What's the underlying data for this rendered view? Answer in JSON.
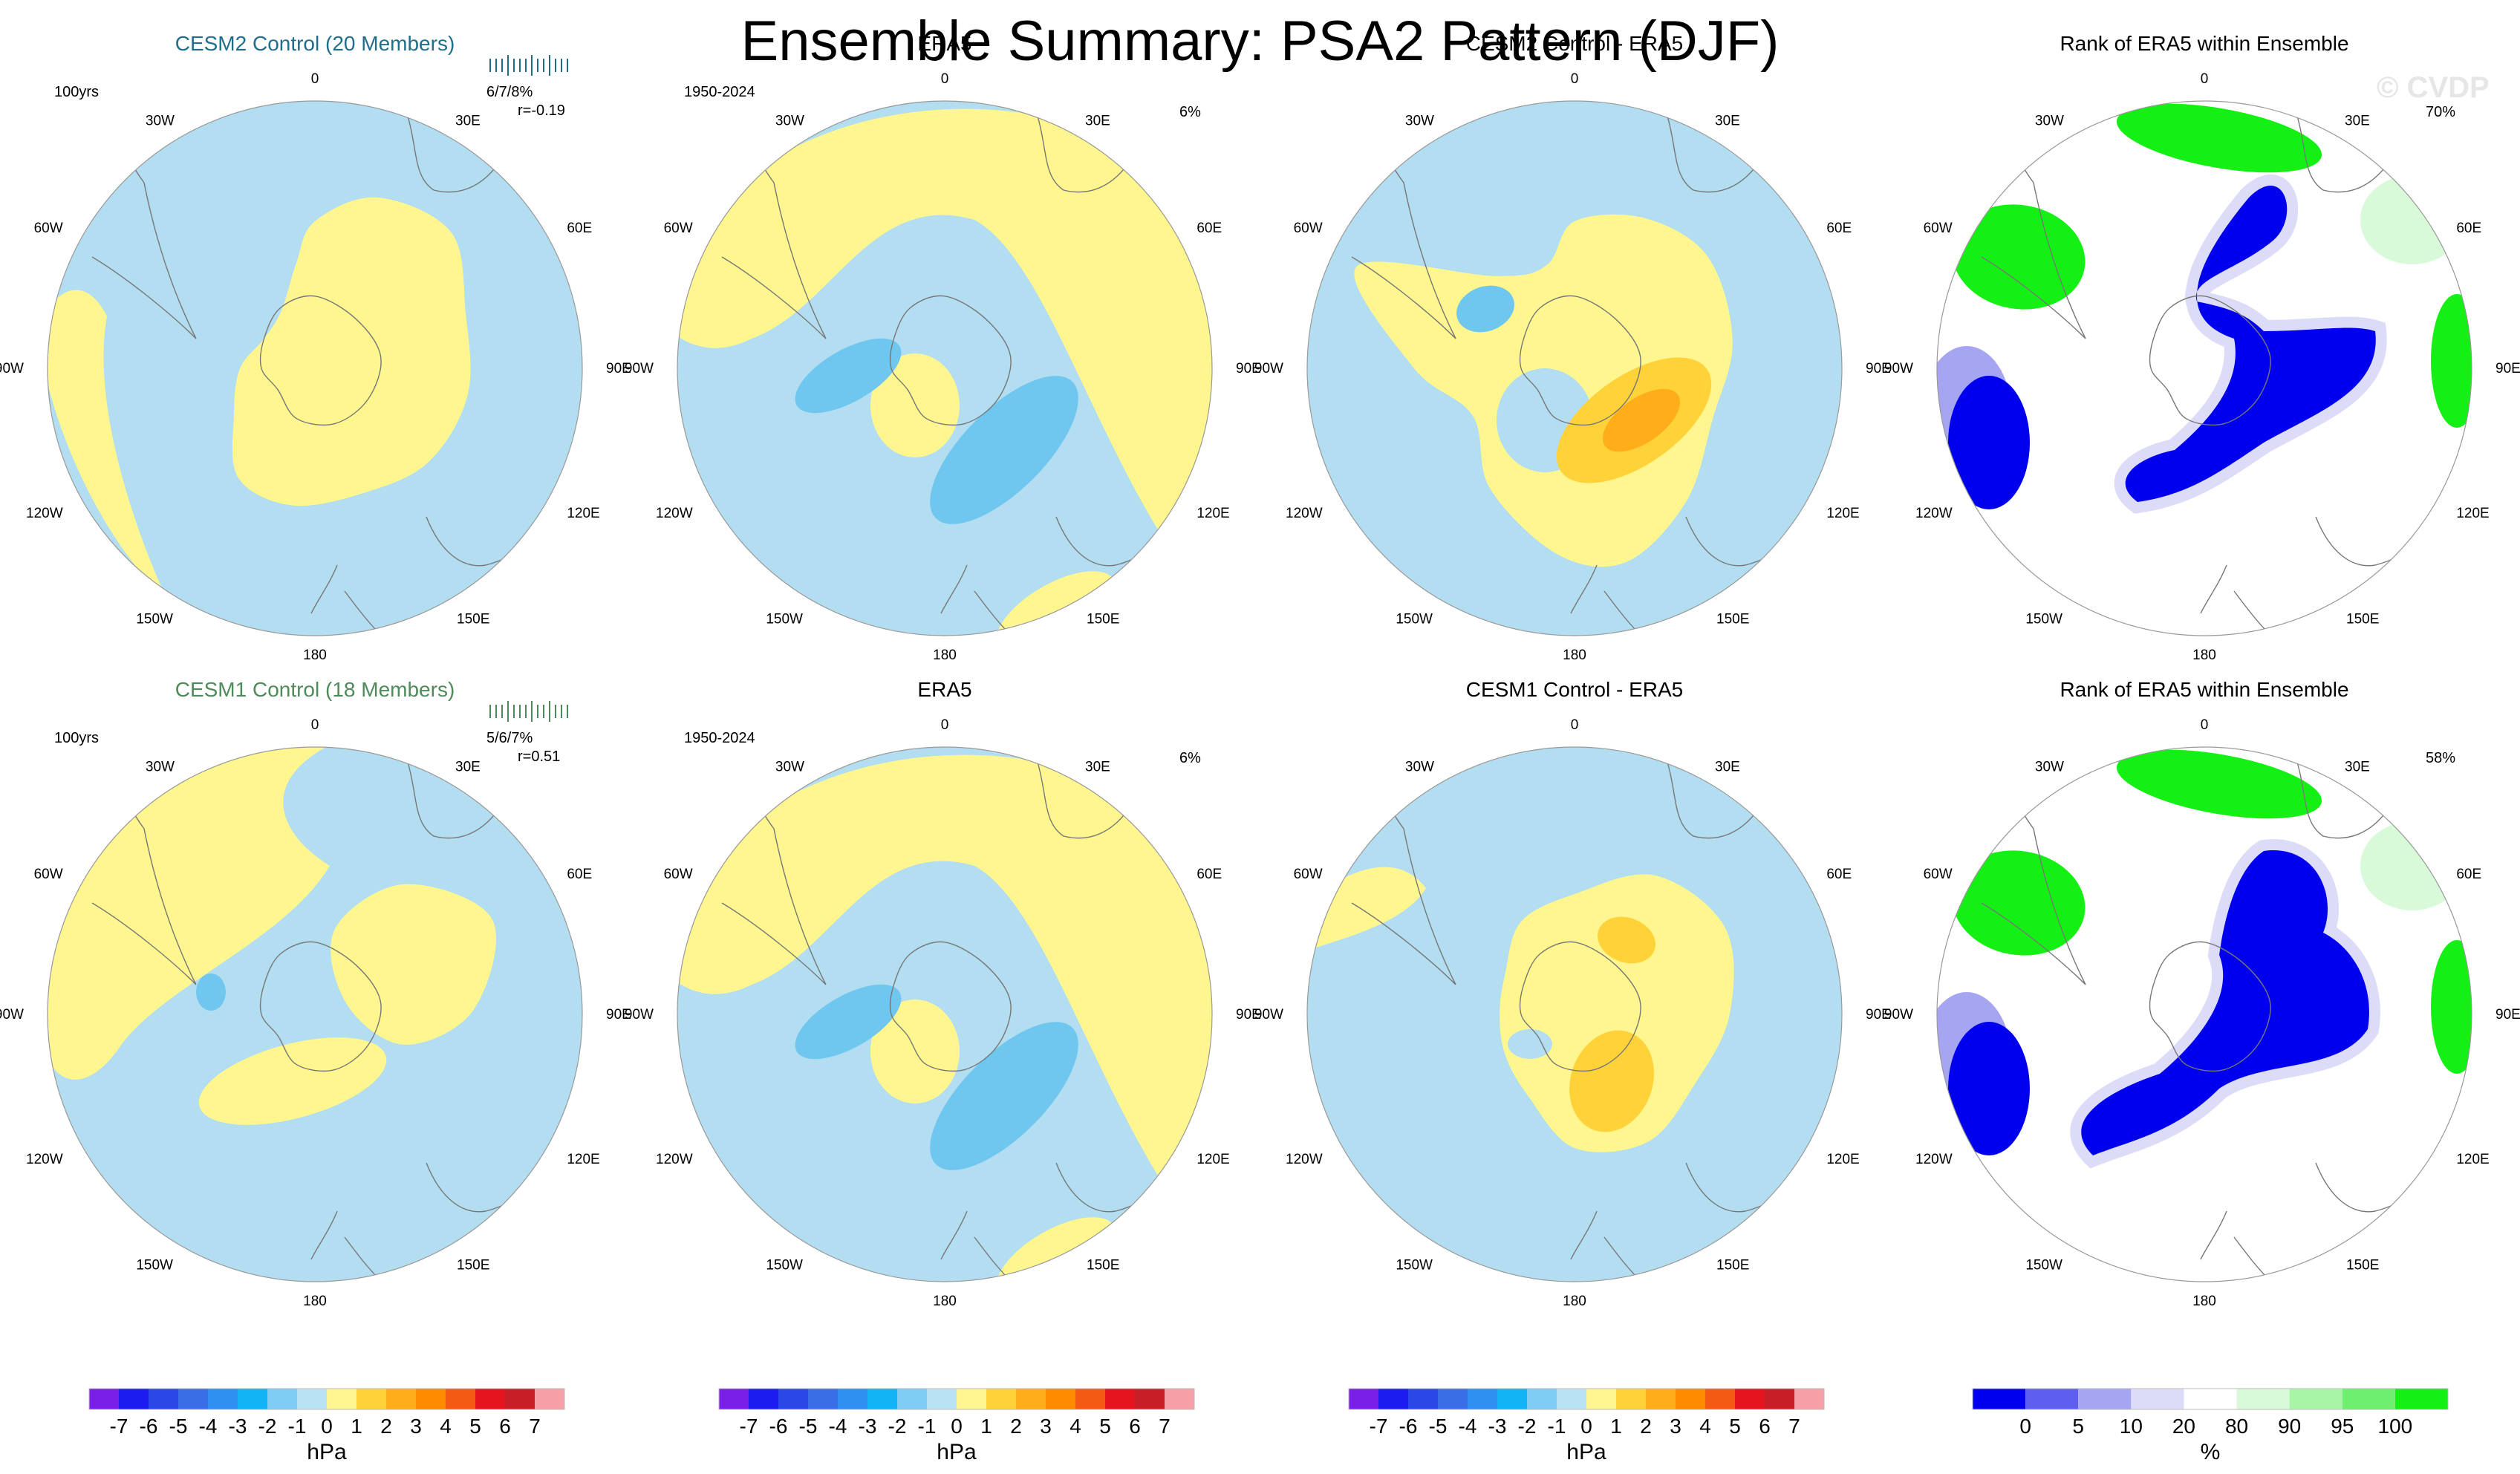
{
  "title": "Ensemble Summary: PSA2 Pattern (DJF)",
  "watermark": "© CVDP",
  "colors": {
    "ocean_neg1": "#b3ddf0",
    "pos1": "#fff68f",
    "neg2": "#6fc6ee",
    "neg3": "#53a7e2",
    "pos2": "#ffd23a",
    "pos3": "#ffae1a",
    "pos4": "#ff8c00",
    "rank_blue": "#0000ee",
    "rank_lav": "#a5a5f2",
    "rank_pale": "#dcdcf8",
    "rank_palegreen": "#d8fad8",
    "rank_green": "#14f014",
    "coast": "#777777"
  },
  "polar_labels": {
    "top": "0",
    "top_right": "30E",
    "right_upper": "60E",
    "right": "90E",
    "right_lower": "120E",
    "bottom_right": "150E",
    "bottom": "180",
    "bottom_left": "150W",
    "left_lower": "120W",
    "left": "90W",
    "left_upper": "60W",
    "top_left": "30W"
  },
  "rows": [
    {
      "model_panel": {
        "title": "CESM2 Control (20 Members)",
        "title_color": "#1f6e8c",
        "period": "100yrs",
        "stats": "6/7/8%",
        "corr": "r=-0.19"
      },
      "obs_panel": {
        "title": "ERA5",
        "period": "1950-2024",
        "pct": "6%"
      },
      "diff_panel": {
        "title": "CESM2 Control - ERA5"
      },
      "rank_panel": {
        "title": "Rank of ERA5 within Ensemble",
        "pct": "70%"
      }
    },
    {
      "model_panel": {
        "title": "CESM1 Control (18 Members)",
        "title_color": "#4f8a5a",
        "period": "100yrs",
        "stats": "5/6/7%",
        "corr": "r=0.51"
      },
      "obs_panel": {
        "title": "ERA5",
        "period": "1950-2024",
        "pct": "6%"
      },
      "diff_panel": {
        "title": "CESM1 Control - ERA5"
      },
      "rank_panel": {
        "title": "Rank of ERA5 within Ensemble",
        "pct": "58%"
      }
    }
  ],
  "chart_data": [
    {
      "type": "heatmap",
      "description_role": "colorbar",
      "title": "hPa colour scale",
      "unit": "hPa",
      "tick_labels": [
        "-7",
        "-6",
        "-5",
        "-4",
        "-3",
        "-2",
        "-1",
        "0",
        "1",
        "2",
        "3",
        "4",
        "5",
        "6",
        "7"
      ],
      "colors": [
        "#7a1fe8",
        "#1c1cf0",
        "#2a48e8",
        "#3a6ee6",
        "#2f8ff0",
        "#12b4f5",
        "#7fcdf2",
        "#b9e3f5",
        "#fff68f",
        "#ffd23a",
        "#ffae1a",
        "#ff8c00",
        "#f55a14",
        "#e6141e",
        "#c81e28",
        "#f5a0a6"
      ]
    },
    {
      "type": "heatmap",
      "description_role": "colorbar",
      "title": "rank colour scale",
      "unit": "%",
      "tick_labels": [
        "0",
        "5",
        "10",
        "20",
        "80",
        "90",
        "95",
        "100"
      ],
      "colors": [
        "#0000ee",
        "#5e5ef0",
        "#a5a5f2",
        "#dcdcf8",
        "#ffffff",
        "#d8fad8",
        "#a8f5a8",
        "#6ef06e",
        "#14f014"
      ]
    }
  ]
}
